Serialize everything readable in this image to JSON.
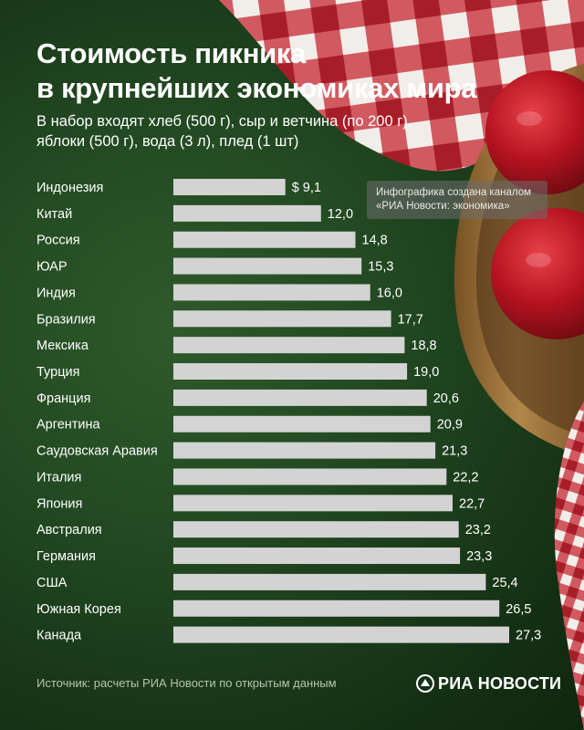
{
  "header": {
    "title_line1": "Стоимость пикника",
    "title_line2": "в крупнейших экономиках мира",
    "subtitle_line1": "В набор входят хлеб (500 г), сыр и ветчина (по 200 г),",
    "subtitle_line2": "яблоки (500 г), вода (3 л), плед (1 шт)"
  },
  "credit": {
    "line1": "Инфографика создана каналом",
    "line2": "«РИА Новости: экономика»"
  },
  "footer": {
    "source": "Источник: расчеты РИА Новости по открытым данным",
    "logo_text": "РИА НОВОСТИ"
  },
  "colors": {
    "bar": "#d3d3d3",
    "label": "#ffffff",
    "background": "#1f4420"
  },
  "chart_data": {
    "type": "bar",
    "orientation": "horizontal",
    "value_prefix_first": "$ ",
    "categories": [
      "Индонезия",
      "Китай",
      "Россия",
      "ЮАР",
      "Индия",
      "Бразилия",
      "Мексика",
      "Турция",
      "Франция",
      "Аргентина",
      "Саудовская Аравия",
      "Италия",
      "Япония",
      "Австралия",
      "Германия",
      "США",
      "Южная Корея",
      "Канада"
    ],
    "values": [
      9.1,
      12.0,
      14.8,
      15.3,
      16.0,
      17.7,
      18.8,
      19.0,
      20.6,
      20.9,
      21.3,
      22.2,
      22.7,
      23.2,
      23.3,
      25.4,
      26.5,
      27.3
    ],
    "value_labels": [
      "9,1",
      "12,0",
      "14,8",
      "15,3",
      "16,0",
      "17,7",
      "18,8",
      "19,0",
      "20,6",
      "20,9",
      "21,3",
      "22,2",
      "22,7",
      "23,2",
      "23,3",
      "25,4",
      "26,5",
      "27,3"
    ],
    "xlim": [
      0,
      27.3
    ],
    "grid": false,
    "legend": "none"
  }
}
